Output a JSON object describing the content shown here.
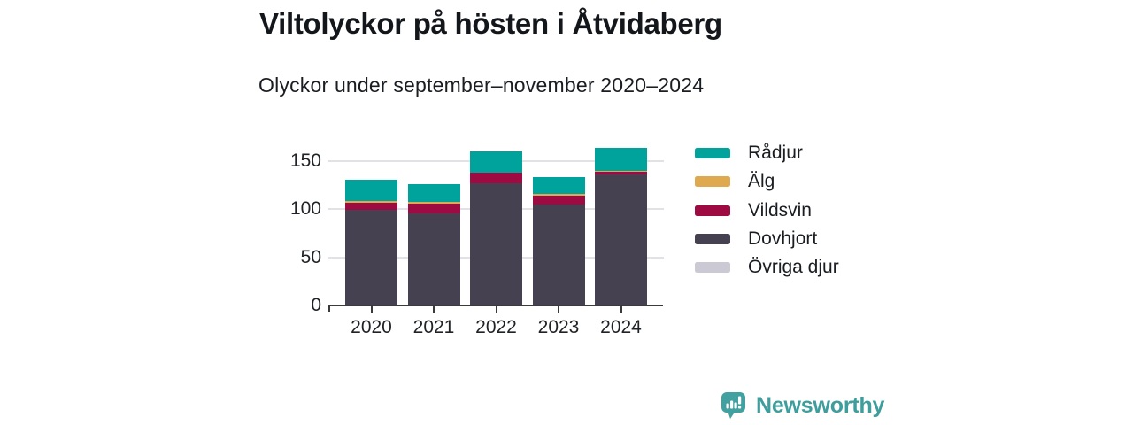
{
  "header": {
    "title": "Viltolyckor på hösten i Åtvidaberg",
    "subtitle": "Olyckor under september–november 2020–2024"
  },
  "chart_data": {
    "type": "bar",
    "stacked": true,
    "title": "Viltolyckor på hösten i Åtvidaberg",
    "subtitle": "Olyckor under september–november 2020–2024",
    "categories": [
      "2020",
      "2021",
      "2022",
      "2023",
      "2024"
    ],
    "series": [
      {
        "name": "Dovhjort",
        "color": "#454150",
        "values": [
          99,
          96,
          127,
          105,
          136
        ]
      },
      {
        "name": "Vildsvin",
        "color": "#9d0b42",
        "values": [
          8,
          10,
          11,
          9,
          3
        ]
      },
      {
        "name": "Älg",
        "color": "#dfa94f",
        "values": [
          2,
          2,
          0,
          2,
          1
        ]
      },
      {
        "name": "Rådjur",
        "color": "#00a39b",
        "values": [
          22,
          18,
          22,
          17,
          24
        ]
      },
      {
        "name": "Övriga djur",
        "color": "#cbcad4",
        "values": [
          0,
          0,
          0,
          0,
          0
        ]
      }
    ],
    "totals": [
      131,
      126,
      160,
      133,
      164
    ],
    "legend_order": [
      "Rådjur",
      "Älg",
      "Vildsvin",
      "Dovhjort",
      "Övriga djur"
    ],
    "legend_position": "right",
    "xlabel": "",
    "ylabel": "",
    "yticks": [
      0,
      50,
      100,
      150
    ],
    "ylim": [
      0,
      168
    ],
    "grid": "horizontal"
  },
  "footer": {
    "brand": "Newsworthy"
  },
  "colors": {
    "axis": "#3a3a3a",
    "gridline": "#e2e2e6",
    "text": "#1a1d21",
    "brand_teal": "#3e9d9d",
    "logo_bubble": "#41a0a0"
  }
}
